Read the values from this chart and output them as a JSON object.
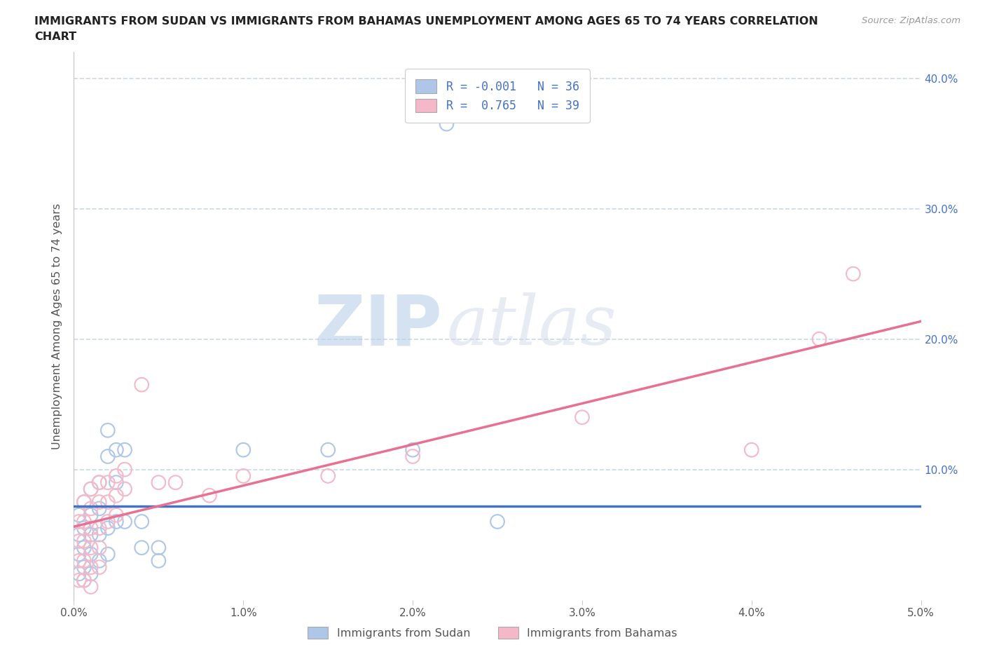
{
  "title_line1": "IMMIGRANTS FROM SUDAN VS IMMIGRANTS FROM BAHAMAS UNEMPLOYMENT AMONG AGES 65 TO 74 YEARS CORRELATION",
  "title_line2": "CHART",
  "source": "Source: ZipAtlas.com",
  "ylabel": "Unemployment Among Ages 65 to 74 years",
  "xlim": [
    0.0,
    0.05
  ],
  "ylim": [
    0.0,
    0.42
  ],
  "xticks": [
    0.0,
    0.01,
    0.02,
    0.03,
    0.04,
    0.05
  ],
  "xtick_labels": [
    "0.0%",
    "1.0%",
    "2.0%",
    "3.0%",
    "4.0%",
    "5.0%"
  ],
  "yticks": [
    0.0,
    0.1,
    0.2,
    0.3,
    0.4
  ],
  "ytick_labels_right": [
    "",
    "10.0%",
    "20.0%",
    "30.0%",
    "40.0%"
  ],
  "legend_items": [
    {
      "label_r": "R = -0.001",
      "label_n": "N = 36",
      "color": "#aec6e8"
    },
    {
      "label_r": "R =  0.765",
      "label_n": "N = 39",
      "color": "#f4b8c8"
    }
  ],
  "legend_bottom_items": [
    {
      "label": "Immigrants from Sudan",
      "color": "#aec6e8"
    },
    {
      "label": "Immigrants from Bahamas",
      "color": "#f4b8c8"
    }
  ],
  "sudan_color": "#aec6e8",
  "bahamas_color": "#f4b8c8",
  "sudan_line_color": "#4472c4",
  "bahamas_line_color": "#e87090",
  "sudan_points": [
    [
      0.0003,
      0.065
    ],
    [
      0.0003,
      0.05
    ],
    [
      0.0003,
      0.035
    ],
    [
      0.0003,
      0.02
    ],
    [
      0.0006,
      0.075
    ],
    [
      0.0006,
      0.055
    ],
    [
      0.0006,
      0.04
    ],
    [
      0.0006,
      0.025
    ],
    [
      0.0006,
      0.015
    ],
    [
      0.001,
      0.085
    ],
    [
      0.001,
      0.065
    ],
    [
      0.001,
      0.05
    ],
    [
      0.001,
      0.035
    ],
    [
      0.001,
      0.02
    ],
    [
      0.0015,
      0.09
    ],
    [
      0.0015,
      0.07
    ],
    [
      0.0015,
      0.05
    ],
    [
      0.0015,
      0.03
    ],
    [
      0.002,
      0.13
    ],
    [
      0.002,
      0.11
    ],
    [
      0.002,
      0.055
    ],
    [
      0.002,
      0.035
    ],
    [
      0.0025,
      0.115
    ],
    [
      0.0025,
      0.09
    ],
    [
      0.0025,
      0.06
    ],
    [
      0.003,
      0.115
    ],
    [
      0.003,
      0.06
    ],
    [
      0.004,
      0.06
    ],
    [
      0.004,
      0.04
    ],
    [
      0.005,
      0.04
    ],
    [
      0.005,
      0.03
    ],
    [
      0.01,
      0.115
    ],
    [
      0.015,
      0.115
    ],
    [
      0.02,
      0.115
    ],
    [
      0.025,
      0.06
    ],
    [
      0.022,
      0.365
    ]
  ],
  "bahamas_points": [
    [
      0.0003,
      0.06
    ],
    [
      0.0003,
      0.045
    ],
    [
      0.0003,
      0.03
    ],
    [
      0.0003,
      0.015
    ],
    [
      0.0006,
      0.075
    ],
    [
      0.0006,
      0.06
    ],
    [
      0.0006,
      0.045
    ],
    [
      0.0006,
      0.03
    ],
    [
      0.0006,
      0.015
    ],
    [
      0.001,
      0.085
    ],
    [
      0.001,
      0.07
    ],
    [
      0.001,
      0.055
    ],
    [
      0.001,
      0.04
    ],
    [
      0.001,
      0.025
    ],
    [
      0.001,
      0.01
    ],
    [
      0.0015,
      0.09
    ],
    [
      0.0015,
      0.075
    ],
    [
      0.0015,
      0.055
    ],
    [
      0.0015,
      0.04
    ],
    [
      0.0015,
      0.025
    ],
    [
      0.002,
      0.09
    ],
    [
      0.002,
      0.075
    ],
    [
      0.002,
      0.06
    ],
    [
      0.0025,
      0.095
    ],
    [
      0.0025,
      0.08
    ],
    [
      0.0025,
      0.065
    ],
    [
      0.003,
      0.1
    ],
    [
      0.003,
      0.085
    ],
    [
      0.004,
      0.165
    ],
    [
      0.005,
      0.09
    ],
    [
      0.006,
      0.09
    ],
    [
      0.008,
      0.08
    ],
    [
      0.01,
      0.095
    ],
    [
      0.015,
      0.095
    ],
    [
      0.02,
      0.11
    ],
    [
      0.03,
      0.14
    ],
    [
      0.04,
      0.115
    ],
    [
      0.044,
      0.2
    ],
    [
      0.046,
      0.25
    ]
  ],
  "background_color": "#ffffff",
  "grid_color": "#c8d8e8",
  "watermark_zip": "ZIP",
  "watermark_atlas": "atlas"
}
